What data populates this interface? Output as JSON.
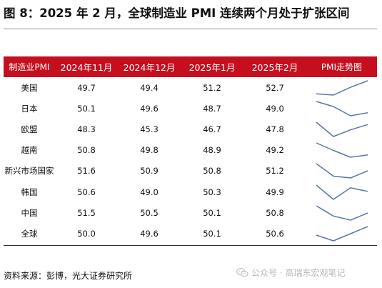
{
  "title": "图 8：2025 年 2 月，全球制造业 PMI 连续两个月处于扩张区间",
  "table": {
    "headers": [
      "制造业PMI",
      "2024年11月",
      "2024年12月",
      "2025年1月",
      "2025年2月",
      "PMI走势图"
    ],
    "rows": [
      {
        "name": "美国",
        "values": [
          "49.7",
          "49.4",
          "51.2",
          "52.7"
        ]
      },
      {
        "name": "日本",
        "values": [
          "50.1",
          "49.6",
          "48.7",
          "49.0"
        ]
      },
      {
        "name": "欧盟",
        "values": [
          "48.3",
          "45.3",
          "46.7",
          "47.8"
        ]
      },
      {
        "name": "越南",
        "values": [
          "50.8",
          "49.8",
          "48.9",
          "49.2"
        ]
      },
      {
        "name": "新兴市场国家",
        "values": [
          "51.6",
          "50.9",
          "50.8",
          "51.2"
        ]
      },
      {
        "name": "韩国",
        "values": [
          "50.6",
          "49.0",
          "50.3",
          "49.9"
        ]
      },
      {
        "name": "中国",
        "values": [
          "51.5",
          "50.5",
          "50.1",
          "50.8"
        ]
      },
      {
        "name": "全球",
        "values": [
          "50.0",
          "49.6",
          "50.1",
          "50.6"
        ]
      }
    ]
  },
  "sparkline_color": "#5677a8",
  "header_color": "#c50f1f",
  "source": "资料来源：彭博，光大证券研究所",
  "watermark": "公众号 · 高瑞东宏观笔记",
  "watermark_icon": "wechat-icon"
}
